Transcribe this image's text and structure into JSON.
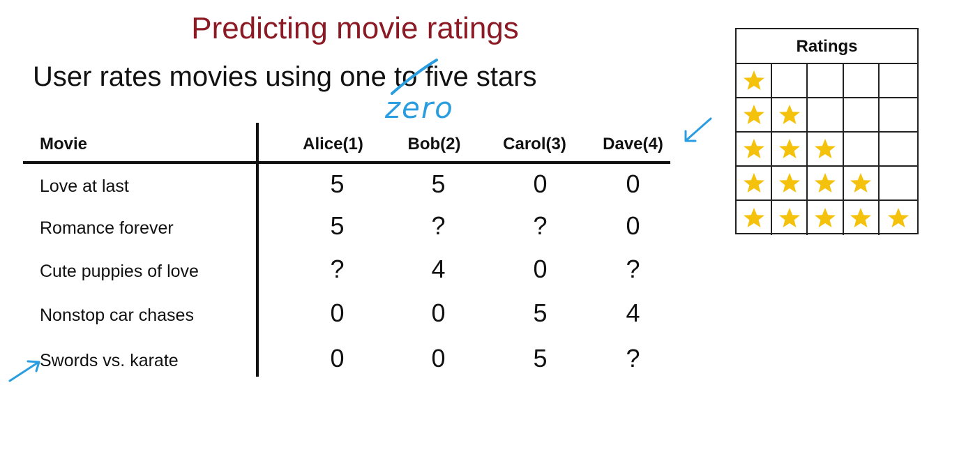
{
  "slide": {
    "title": "Predicting movie ratings",
    "subtitle_pre": "User rates movies using ",
    "subtitle_struck": "one",
    "subtitle_post": " to five stars",
    "handwritten_correction": "zero"
  },
  "table": {
    "movie_header": "Movie",
    "user_headers": [
      "Alice(1)",
      "Bob(2)",
      "Carol(3)",
      "Dave(4)"
    ],
    "rows": [
      {
        "movie": "Love at last",
        "ratings": [
          "5",
          "5",
          "0",
          "0"
        ]
      },
      {
        "movie": "Romance forever",
        "ratings": [
          "5",
          "?",
          "?",
          "0"
        ]
      },
      {
        "movie": "Cute puppies of love",
        "ratings": [
          "?",
          "4",
          "0",
          "?"
        ]
      },
      {
        "movie": "Nonstop car chases",
        "ratings": [
          "0",
          "0",
          "5",
          "4"
        ]
      },
      {
        "movie": "Swords vs. karate",
        "ratings": [
          "0",
          "0",
          "5",
          "?"
        ]
      }
    ]
  },
  "legend": {
    "title": "Ratings",
    "rows_star_counts": [
      1,
      2,
      3,
      4,
      5
    ],
    "star_color": "#f4c20d"
  },
  "annotations": {
    "ink_color": "#2a9de0",
    "arrows": [
      "arrow-pointing-to-dave-column",
      "arrow-pointing-to-swords-row"
    ]
  }
}
